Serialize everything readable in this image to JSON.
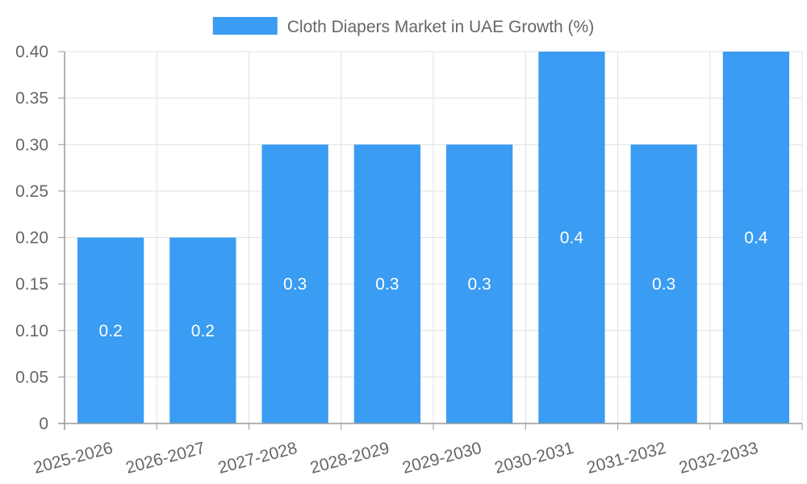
{
  "chart_data": {
    "type": "bar",
    "title": "",
    "xlabel": "",
    "ylabel": "",
    "legend_position": "top",
    "categories": [
      "2025-2026",
      "2026-2027",
      "2027-2028",
      "2028-2029",
      "2029-2030",
      "2030-2031",
      "2031-2032",
      "2032-2033"
    ],
    "series": [
      {
        "name": "Cloth Diapers Market in UAE Growth (%)",
        "values": [
          0.2,
          0.2,
          0.3,
          0.3,
          0.3,
          0.4,
          0.3,
          0.4
        ],
        "data_labels": [
          "0.2",
          "0.2",
          "0.3",
          "0.3",
          "0.3",
          "0.4",
          "0.3",
          "0.4"
        ],
        "color": "#3a9cf2"
      }
    ],
    "ylim": [
      0,
      0.4
    ],
    "y_ticks": [
      0,
      0.05,
      0.1,
      0.15,
      0.2,
      0.25,
      0.3,
      0.35,
      0.4
    ],
    "y_tick_labels": [
      "0",
      "0.05",
      "0.10",
      "0.15",
      "0.20",
      "0.25",
      "0.30",
      "0.35",
      "0.40"
    ],
    "grid": true
  }
}
